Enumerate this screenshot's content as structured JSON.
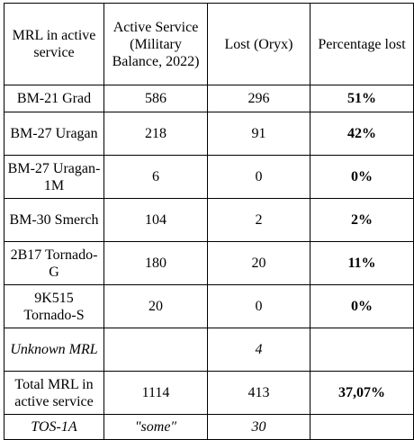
{
  "table": {
    "headers": [
      "MRL in active service",
      "Active Service (Military Balance, 2022)",
      "Lost (Oryx)",
      "Percentage lost"
    ],
    "rows": [
      {
        "system": "BM-21 Grad",
        "active": "586",
        "lost": "296",
        "percent": "51%"
      },
      {
        "system": "BM-27 Uragan",
        "active": "218",
        "lost": "91",
        "percent": "42%"
      },
      {
        "system": "BM-27 Uragan-1M",
        "active": "6",
        "lost": "0",
        "percent": "0%"
      },
      {
        "system": "BM-30 Smerch",
        "active": "104",
        "lost": "2",
        "percent": "2%"
      },
      {
        "system": "2B17 Tornado-G",
        "active": "180",
        "lost": "20",
        "percent": "11%"
      },
      {
        "system": "9K515 Tornado-S",
        "active": "20",
        "lost": "0",
        "percent": "0%"
      },
      {
        "system": "Unknown MRL",
        "active": "",
        "lost": "4",
        "percent": ""
      },
      {
        "system": "Total MRL in active service",
        "active": "1114",
        "lost": "413",
        "percent": "37,07%"
      },
      {
        "system": "TOS-1A",
        "active": "\"some\"",
        "lost": "30",
        "percent": ""
      }
    ]
  }
}
